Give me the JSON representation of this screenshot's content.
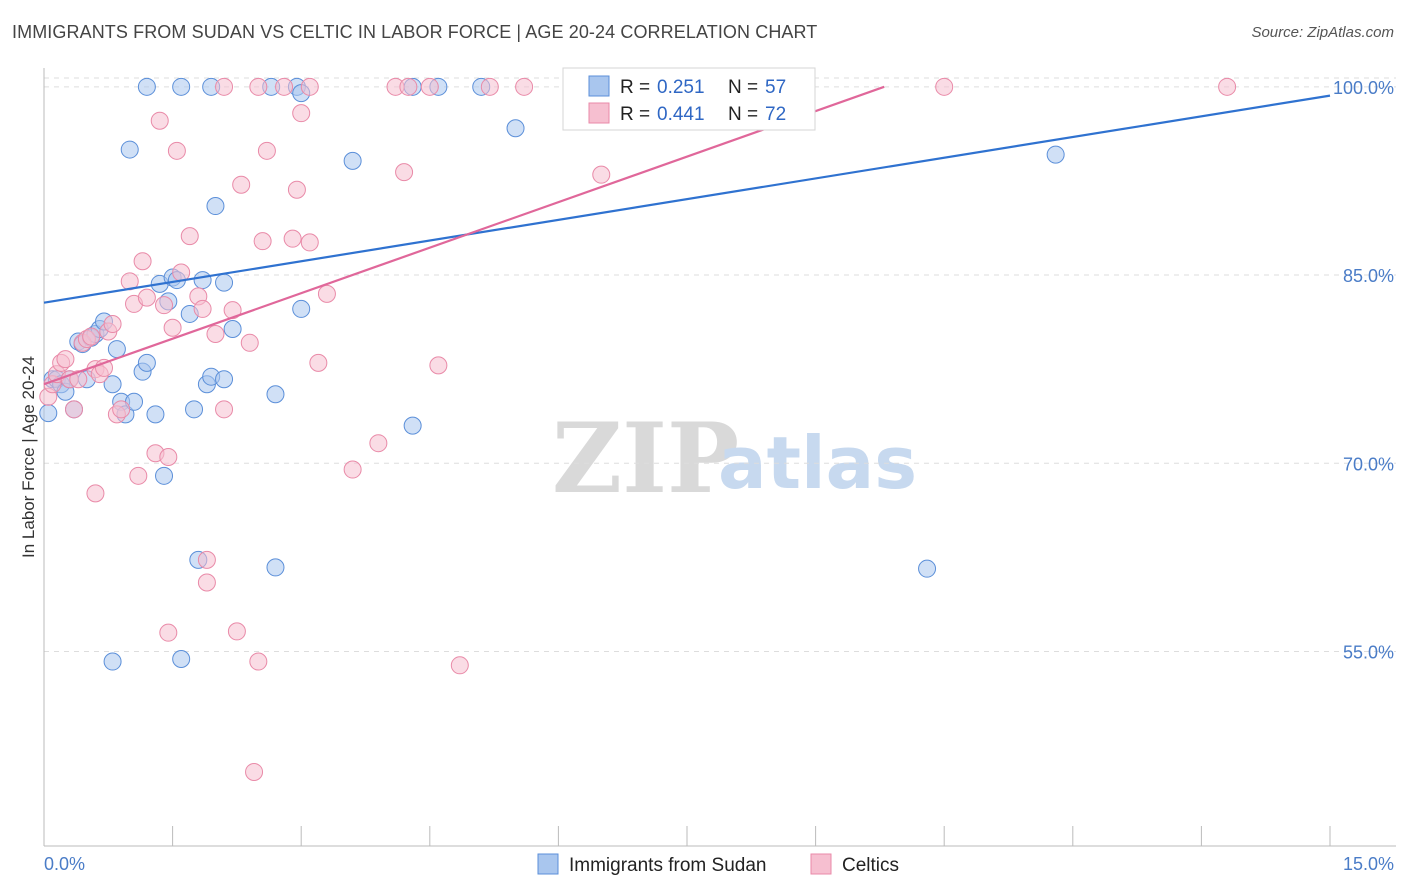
{
  "header": {
    "title": "IMMIGRANTS FROM SUDAN VS CELTIC IN LABOR FORCE | AGE 20-24 CORRELATION CHART",
    "source": "Source: ZipAtlas.com"
  },
  "watermark": {
    "zip": "ZIP",
    "atlas": "atlas"
  },
  "colors": {
    "sudan_fill": "#a9c6ee",
    "sudan_stroke": "#5b8fd9",
    "sudan_line": "#2f72d0",
    "celtic_fill": "#f6bfd0",
    "celtic_stroke": "#e98aa8",
    "celtic_line": "#e0679a",
    "tick": "#4a7cc7",
    "grid": "#dddddd"
  },
  "legend": {
    "rows": [
      {
        "r_label": "R =",
        "r_value": "0.251",
        "n_label": "N =",
        "n_value": "57"
      },
      {
        "r_label": "R =",
        "r_value": "0.441",
        "n_label": "N =",
        "n_value": "72"
      }
    ]
  },
  "bottom_legend": [
    "Immigrants from Sudan",
    "Celtics"
  ],
  "chart_data": {
    "type": "scatter",
    "title": "IMMIGRANTS FROM SUDAN VS CELTIC IN LABOR FORCE | AGE 20-24 CORRELATION CHART",
    "xlabel": "",
    "ylabel": "In Labor Force | Age 20-24",
    "xlim": [
      0,
      15
    ],
    "ylim": [
      39.5,
      101.5
    ],
    "x_tick_labels": [
      "0.0%",
      "15.0%"
    ],
    "y_ticks": [
      55,
      70,
      85,
      100
    ],
    "y_tick_labels": [
      "55.0%",
      "70.0%",
      "85.0%",
      "100.0%"
    ],
    "series": [
      {
        "name": "Immigrants from Sudan",
        "R": 0.251,
        "N": 57,
        "trend": {
          "x": [
            0,
            15
          ],
          "y": [
            82.8,
            99.3
          ]
        },
        "points": [
          [
            0.05,
            74.0
          ],
          [
            0.1,
            76.7
          ],
          [
            0.15,
            76.7
          ],
          [
            0.2,
            76.3
          ],
          [
            0.25,
            75.7
          ],
          [
            0.3,
            76.7
          ],
          [
            0.35,
            74.3
          ],
          [
            0.4,
            79.7
          ],
          [
            0.45,
            79.5
          ],
          [
            0.5,
            76.7
          ],
          [
            0.55,
            80.0
          ],
          [
            0.6,
            80.3
          ],
          [
            0.65,
            80.7
          ],
          [
            0.7,
            81.3
          ],
          [
            0.8,
            76.3
          ],
          [
            0.85,
            79.1
          ],
          [
            0.9,
            74.9
          ],
          [
            0.95,
            73.9
          ],
          [
            1.0,
            95.0
          ],
          [
            1.05,
            74.9
          ],
          [
            1.15,
            77.3
          ],
          [
            1.2,
            78.0
          ],
          [
            1.3,
            73.9
          ],
          [
            1.35,
            84.3
          ],
          [
            1.4,
            69.0
          ],
          [
            1.45,
            82.9
          ],
          [
            1.5,
            84.8
          ],
          [
            1.55,
            84.6
          ],
          [
            1.7,
            81.9
          ],
          [
            1.75,
            74.3
          ],
          [
            1.8,
            62.3
          ],
          [
            1.85,
            84.6
          ],
          [
            1.9,
            76.3
          ],
          [
            1.95,
            76.9
          ],
          [
            2.0,
            90.5
          ],
          [
            2.1,
            84.4
          ],
          [
            2.2,
            80.7
          ],
          [
            2.1,
            76.7
          ],
          [
            2.7,
            75.5
          ],
          [
            2.7,
            61.7
          ],
          [
            3.0,
            82.3
          ],
          [
            3.6,
            94.1
          ],
          [
            4.3,
            73.0
          ],
          [
            5.5,
            96.7
          ],
          [
            10.3,
            61.6
          ],
          [
            11.8,
            94.6
          ],
          [
            1.2,
            100.0
          ],
          [
            1.6,
            100.0
          ],
          [
            1.95,
            100.0
          ],
          [
            2.65,
            100.0
          ],
          [
            2.95,
            100.0
          ],
          [
            3.0,
            99.5
          ],
          [
            4.3,
            100.0
          ],
          [
            4.6,
            100.0
          ],
          [
            5.1,
            100.0
          ],
          [
            0.8,
            54.2
          ],
          [
            1.6,
            54.4
          ]
        ]
      },
      {
        "name": "Celtics",
        "R": 0.441,
        "N": 72,
        "trend": {
          "x": [
            0,
            9.8
          ],
          "y": [
            76.3,
            100.0
          ]
        },
        "points": [
          [
            0.05,
            75.3
          ],
          [
            0.1,
            76.3
          ],
          [
            0.15,
            77.1
          ],
          [
            0.2,
            78.0
          ],
          [
            0.25,
            78.3
          ],
          [
            0.3,
            76.7
          ],
          [
            0.35,
            74.3
          ],
          [
            0.4,
            76.7
          ],
          [
            0.45,
            79.6
          ],
          [
            0.5,
            79.9
          ],
          [
            0.55,
            80.1
          ],
          [
            0.6,
            77.5
          ],
          [
            0.65,
            77.1
          ],
          [
            0.7,
            77.6
          ],
          [
            0.75,
            80.5
          ],
          [
            0.8,
            81.1
          ],
          [
            0.85,
            73.9
          ],
          [
            0.9,
            74.3
          ],
          [
            1.0,
            84.5
          ],
          [
            1.05,
            82.7
          ],
          [
            1.1,
            69.0
          ],
          [
            1.15,
            86.1
          ],
          [
            1.2,
            83.2
          ],
          [
            1.3,
            70.8
          ],
          [
            1.35,
            97.3
          ],
          [
            1.4,
            82.6
          ],
          [
            1.45,
            70.5
          ],
          [
            1.5,
            80.8
          ],
          [
            1.55,
            94.9
          ],
          [
            1.6,
            85.2
          ],
          [
            1.7,
            88.1
          ],
          [
            1.8,
            83.3
          ],
          [
            1.85,
            82.3
          ],
          [
            2.0,
            80.3
          ],
          [
            2.1,
            74.3
          ],
          [
            2.2,
            82.2
          ],
          [
            2.3,
            92.2
          ],
          [
            2.4,
            79.6
          ],
          [
            2.55,
            87.7
          ],
          [
            2.6,
            94.9
          ],
          [
            2.9,
            87.9
          ],
          [
            2.95,
            91.8
          ],
          [
            3.0,
            97.9
          ],
          [
            3.1,
            87.6
          ],
          [
            3.2,
            78.0
          ],
          [
            3.3,
            83.5
          ],
          [
            3.6,
            69.5
          ],
          [
            3.9,
            71.6
          ],
          [
            4.2,
            93.2
          ],
          [
            4.6,
            77.8
          ],
          [
            6.5,
            93.0
          ],
          [
            0.6,
            67.6
          ],
          [
            1.9,
            60.5
          ],
          [
            1.9,
            62.3
          ],
          [
            1.45,
            56.5
          ],
          [
            2.25,
            56.6
          ],
          [
            2.5,
            54.2
          ],
          [
            4.85,
            53.9
          ],
          [
            2.45,
            45.4
          ],
          [
            2.1,
            100.0
          ],
          [
            2.5,
            100.0
          ],
          [
            2.8,
            100.0
          ],
          [
            3.1,
            100.0
          ],
          [
            4.1,
            100.0
          ],
          [
            4.5,
            100.0
          ],
          [
            5.2,
            100.0
          ],
          [
            5.6,
            100.0
          ],
          [
            6.2,
            100.0
          ],
          [
            6.6,
            100.0
          ],
          [
            10.5,
            100.0
          ],
          [
            13.8,
            100.0
          ],
          [
            4.25,
            100.0
          ]
        ]
      }
    ]
  }
}
